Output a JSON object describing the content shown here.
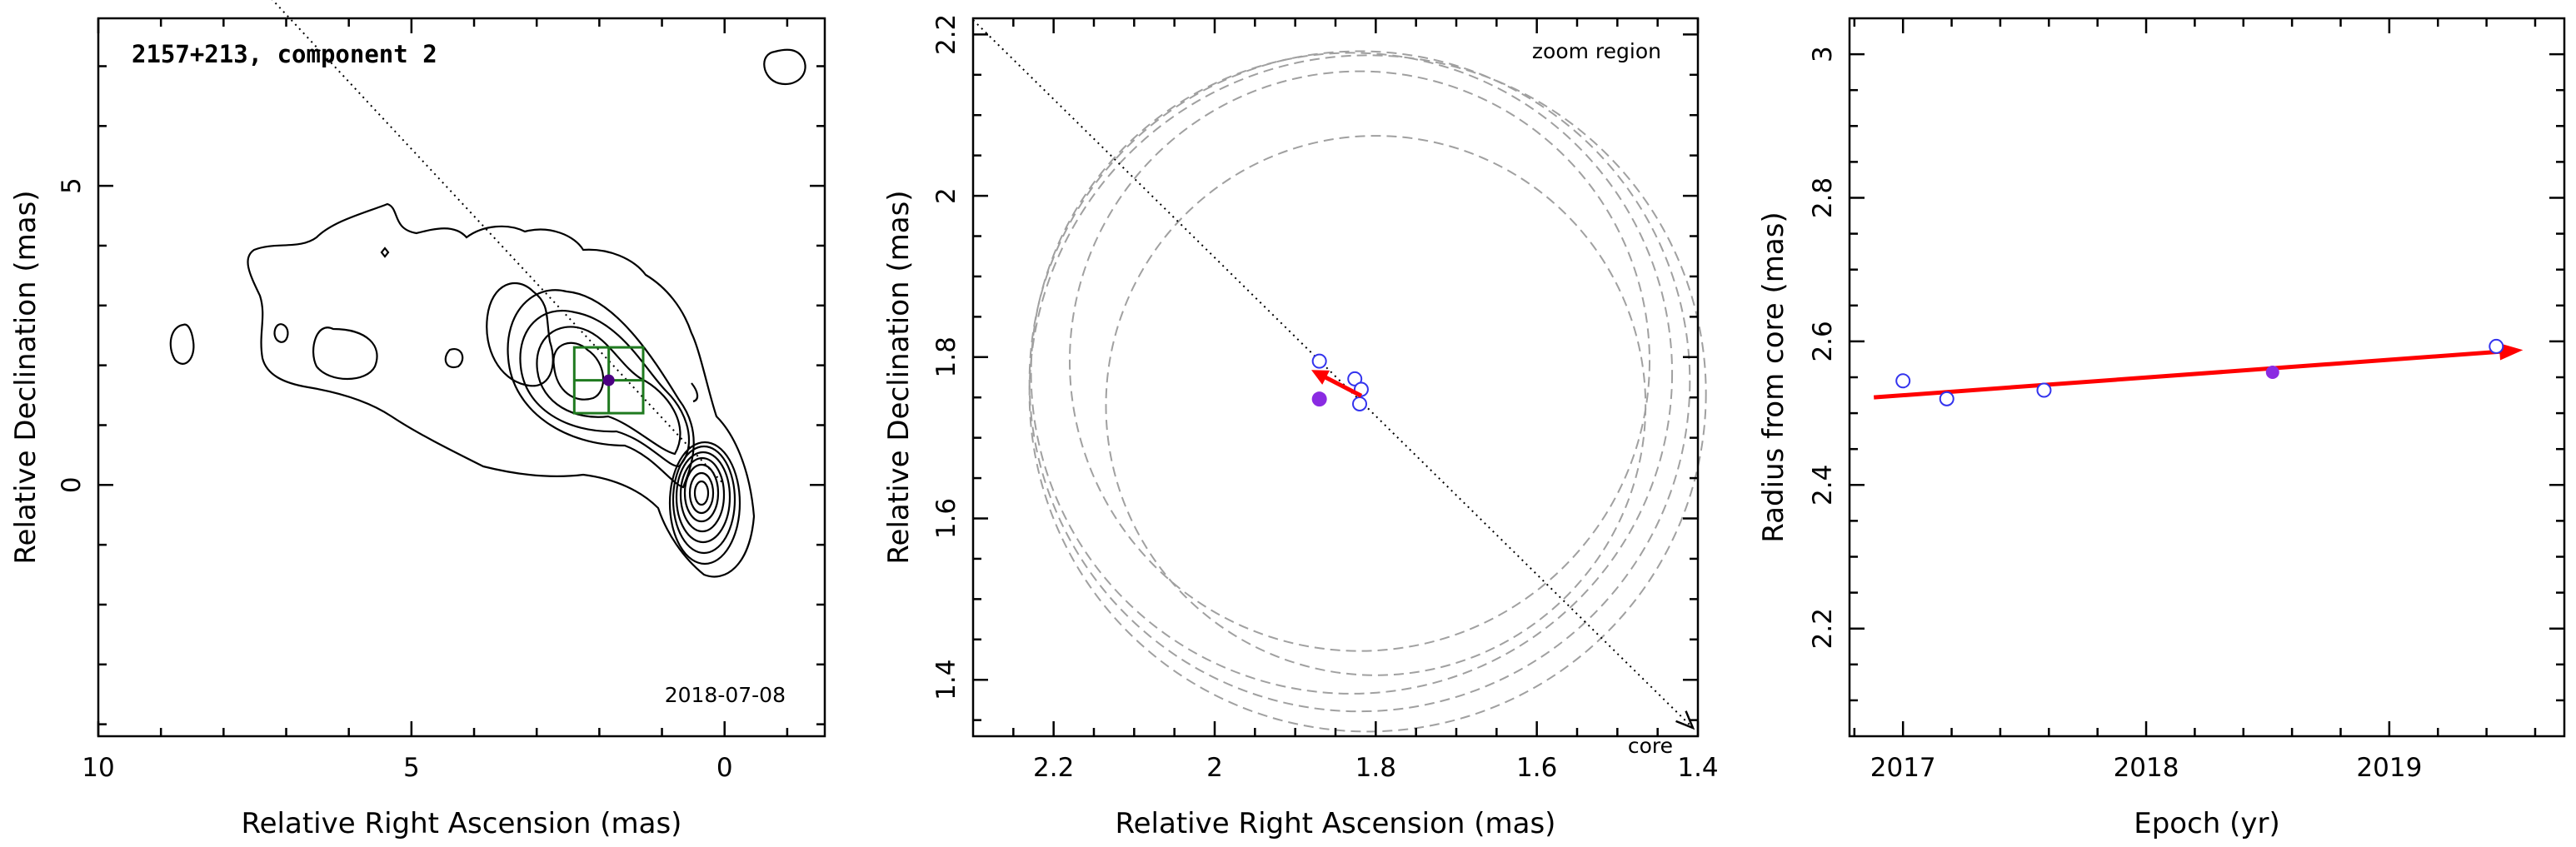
{
  "colors": {
    "fit_arrow": "#ff0000",
    "open_point": "#3333ee",
    "filled_point": "#8a2be2",
    "box": "#1f7a1f",
    "circle": "#a0a0a0"
  },
  "chart_data": [
    {
      "type": "contour",
      "title": "2157+213, component 2",
      "date": "2018-07-08",
      "xlabel": "Relative Right Ascension (mas)",
      "ylabel": "Relative Declination (mas)",
      "xlim": [
        10,
        -1.6
      ],
      "ylim": [
        -4.2,
        7.8
      ],
      "xticks": [
        10,
        5,
        0
      ],
      "yticks": [
        0,
        5
      ],
      "component": {
        "x": 1.85,
        "y": 1.75,
        "box_half_width": 0.55
      },
      "direction_line": {
        "from": [
          7.3,
          8.2
        ],
        "to": [
          0,
          0
        ]
      }
    },
    {
      "type": "scatter",
      "annotation": "zoom region",
      "core_label": "core",
      "xlabel": "Relative Right Ascension (mas)",
      "ylabel": "Relative Declination (mas)",
      "xlim": [
        2.3,
        1.4
      ],
      "ylim": [
        1.33,
        2.22
      ],
      "xticks": [
        2.2,
        2,
        1.8,
        1.6,
        1.4
      ],
      "yticks": [
        1.4,
        1.6,
        1.8,
        2,
        2.2
      ],
      "open_points": [
        {
          "x": 1.87,
          "y": 1.795
        },
        {
          "x": 1.826,
          "y": 1.773
        },
        {
          "x": 1.818,
          "y": 1.76
        },
        {
          "x": 1.82,
          "y": 1.742
        }
      ],
      "filled_point": {
        "x": 1.87,
        "y": 1.748
      },
      "motion_arrow": {
        "from": [
          1.818,
          1.752
        ],
        "to": [
          1.88,
          1.784
        ]
      },
      "error_circles": [
        {
          "x": 1.83,
          "y": 1.78,
          "r": 0.398
        },
        {
          "x": 1.82,
          "y": 1.77,
          "r": 0.41
        },
        {
          "x": 1.81,
          "y": 1.755,
          "r": 0.42
        },
        {
          "x": 1.82,
          "y": 1.795,
          "r": 0.36
        },
        {
          "x": 1.8,
          "y": 1.74,
          "r": 0.335
        }
      ]
    },
    {
      "type": "scatter",
      "xlabel": "Epoch (yr)",
      "ylabel": "Radius from core (mas)",
      "xlim": [
        2016.78,
        2019.72
      ],
      "ylim": [
        2.05,
        3.05
      ],
      "xticks": [
        2017,
        2018,
        2019
      ],
      "yticks": [
        2.2,
        2.4,
        2.6,
        2.8,
        3
      ],
      "open_points": [
        {
          "x": 2017.0,
          "y": 2.545
        },
        {
          "x": 2017.18,
          "y": 2.52
        },
        {
          "x": 2017.58,
          "y": 2.532
        },
        {
          "x": 2019.44,
          "y": 2.593
        }
      ],
      "filled_point": {
        "x": 2018.52,
        "y": 2.557
      },
      "fit": {
        "x0": 2016.88,
        "y0": 2.522,
        "x1": 2019.55,
        "y1": 2.588
      }
    }
  ]
}
